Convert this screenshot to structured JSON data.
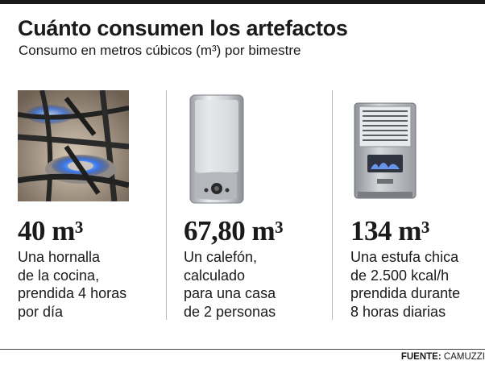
{
  "header": {
    "title": "Cuánto consumen los artefactos",
    "subtitle": "Consumo en metros cúbicos (m³) por bimestre"
  },
  "items": [
    {
      "icon": "gas-stove-burner-icon",
      "value": "40 m³",
      "lines": [
        "Una hornalla",
        "de la cocina,",
        "prendida 4 horas",
        "por día"
      ]
    },
    {
      "icon": "water-heater-icon",
      "value": "67,80 m³",
      "lines": [
        "Un calefón,",
        "calculado",
        "para una casa",
        "de 2 personas"
      ]
    },
    {
      "icon": "gas-space-heater-icon",
      "value": "134 m³",
      "lines": [
        "Una estufa chica",
        "de 2.500 kcal/h",
        "prendida durante",
        "8 horas diarias"
      ]
    }
  ],
  "footer": {
    "source_label": "FUENTE:",
    "source_value": "CAMUZZI"
  },
  "colors": {
    "text": "#1a1a1a",
    "divider": "#b9b9b9",
    "flame": "#2f6fe0"
  }
}
